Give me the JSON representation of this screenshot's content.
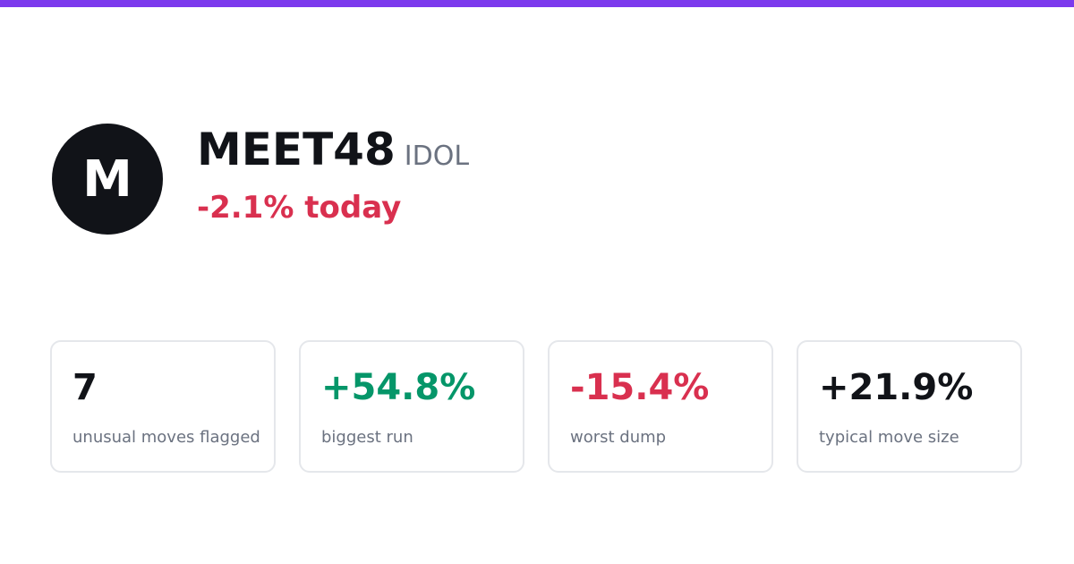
{
  "header": {
    "avatar": "M",
    "name": "MEET48",
    "ticker": "IDOL",
    "change": "-2.1% today"
  },
  "stats": [
    {
      "value": "7",
      "label": "unusual moves flagged"
    },
    {
      "value": "+54.8%",
      "label": "biggest run"
    },
    {
      "value": "-15.4%",
      "label": "worst dump"
    },
    {
      "value": "+21.9%",
      "label": "typical move size"
    }
  ]
}
